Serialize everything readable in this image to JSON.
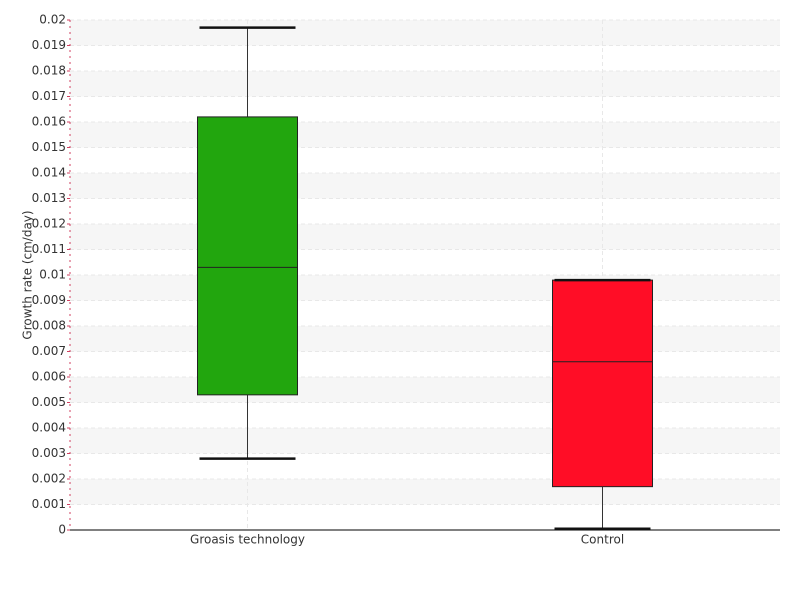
{
  "chart_data": {
    "type": "box",
    "y_label": "Growth rate (cm/day)",
    "categories": [
      "Groasis technology",
      "Control"
    ],
    "colors": [
      "#22a60e",
      "#ff0d26"
    ],
    "min": [
      0.0028,
      5e-05
    ],
    "q1": [
      0.0053,
      0.0017
    ],
    "median": [
      0.0103,
      0.0066
    ],
    "q3": [
      0.0162,
      0.0098
    ],
    "max": [
      0.0197,
      0.0098
    ],
    "ylim": [
      0,
      0.02
    ],
    "yticks": [
      0,
      0.001,
      0.002,
      0.003,
      0.004,
      0.005,
      0.006,
      0.007,
      0.008,
      0.009,
      0.01,
      0.011,
      0.012,
      0.013,
      0.014,
      0.015,
      0.016,
      0.017,
      0.018,
      0.019,
      0.02
    ],
    "grid": true
  }
}
